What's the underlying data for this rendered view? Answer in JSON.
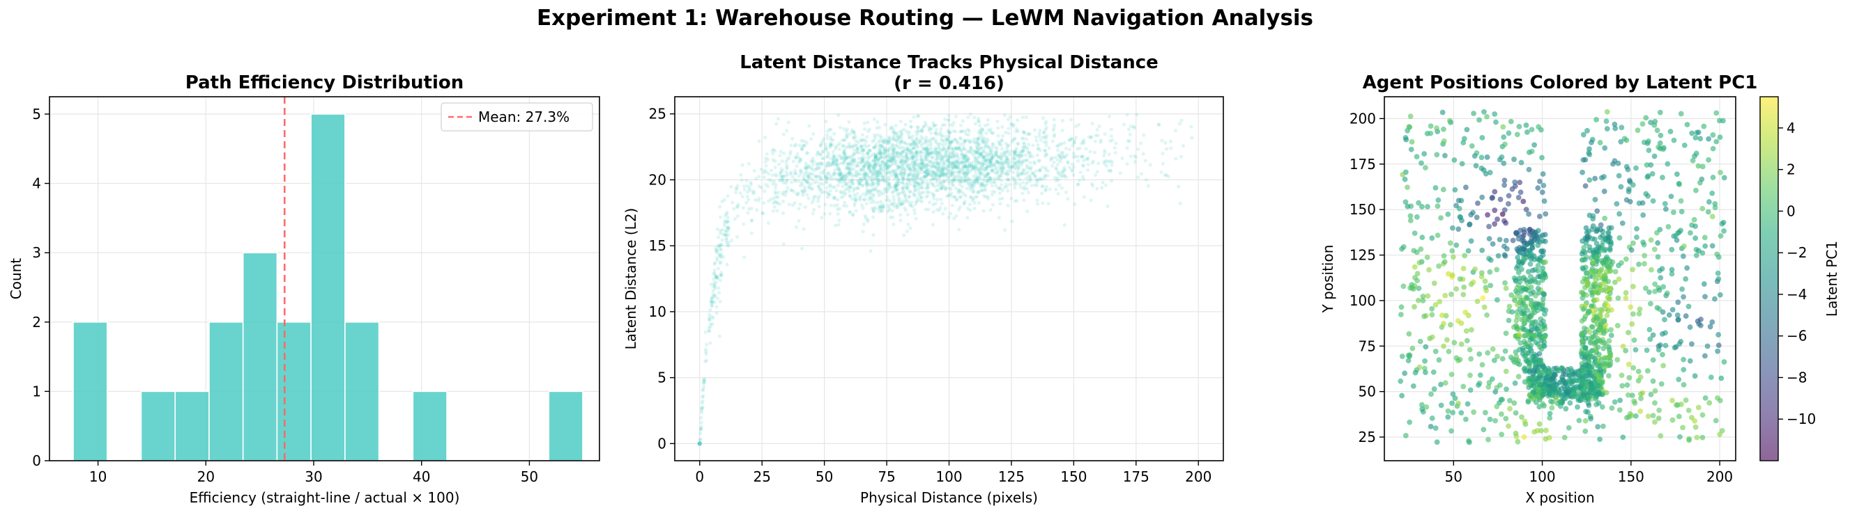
{
  "figure": {
    "suptitle": "Experiment 1: Warehouse Routing — LeWM Navigation Analysis"
  },
  "chart_data": [
    {
      "type": "bar",
      "subtype": "histogram",
      "title": "Path Efficiency Distribution",
      "xlabel": "Efficiency (straight-line / actual × 100)",
      "ylabel": "Count",
      "xlim": [
        5.5,
        56.5
      ],
      "ylim": [
        0,
        5.25
      ],
      "xticks": [
        10,
        20,
        30,
        40,
        50
      ],
      "yticks": [
        0,
        1,
        2,
        3,
        4,
        5
      ],
      "bin_width": 3.15,
      "bins": [
        {
          "x0": 7.7,
          "count": 2
        },
        {
          "x0": 10.85,
          "count": 0
        },
        {
          "x0": 14.0,
          "count": 1
        },
        {
          "x0": 17.15,
          "count": 1
        },
        {
          "x0": 20.3,
          "count": 2
        },
        {
          "x0": 23.45,
          "count": 3
        },
        {
          "x0": 26.6,
          "count": 2
        },
        {
          "x0": 29.75,
          "count": 5
        },
        {
          "x0": 32.9,
          "count": 2
        },
        {
          "x0": 36.05,
          "count": 0
        },
        {
          "x0": 39.2,
          "count": 1
        },
        {
          "x0": 42.35,
          "count": 0
        },
        {
          "x0": 45.5,
          "count": 0
        },
        {
          "x0": 48.65,
          "count": 0
        },
        {
          "x0": 51.8,
          "count": 1
        }
      ],
      "bar_color": "#4ecdc4",
      "mean_line": {
        "value": 27.3,
        "label": "Mean: 27.3%",
        "color": "#ff6b6b"
      },
      "legend_position": "top-right",
      "grid": true
    },
    {
      "type": "scatter",
      "title": "Latent Distance Tracks Physical Distance",
      "subtitle": "(r = 0.416)",
      "xlabel": "Physical Distance (pixels)",
      "ylabel": "Latent Distance (L2)",
      "xlim": [
        -10,
        210
      ],
      "ylim": [
        -1.3,
        26.3
      ],
      "xticks": [
        0,
        25,
        50,
        75,
        100,
        125,
        150,
        175,
        200
      ],
      "yticks": [
        0,
        5,
        10,
        15,
        20,
        25
      ],
      "point_color": "#4ecdc4",
      "approx_points": 3000,
      "trend": "rapid rise from 0 to ~16 within 10 pixels, then plateau near 20 with spread 15–25",
      "grid": true
    },
    {
      "type": "scatter",
      "title": "Agent Positions Colored by Latent PC1",
      "xlabel": "X position",
      "ylabel": "Y position",
      "xlim": [
        11,
        209
      ],
      "ylim": [
        12,
        212
      ],
      "xticks": [
        50,
        100,
        150,
        200
      ],
      "yticks": [
        25,
        50,
        75,
        100,
        125,
        150,
        175,
        200
      ],
      "colorbar": {
        "label": "Latent PC1",
        "colormap": "viridis",
        "range": [
          -12,
          5.5
        ],
        "ticks": [
          4,
          2,
          0,
          -2,
          -4,
          -6,
          -8,
          -10
        ]
      },
      "approx_points": 1800,
      "layout": "U-shaped obstacle between x≈100 and x≈125 above y≈65; dense cluster along its floor",
      "grid": true
    }
  ]
}
